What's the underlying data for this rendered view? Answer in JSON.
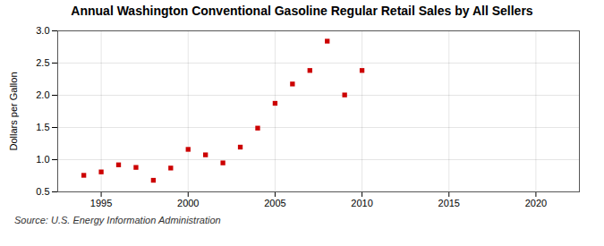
{
  "chart_data": {
    "type": "scatter",
    "title": "Annual Washington Conventional Gasoline Regular Retail Sales by All Sellers",
    "ylabel": "Dollars per Gallon",
    "annotation": "Source: U.S. Energy Information Administration",
    "x": [
      1994,
      1995,
      1996,
      1997,
      1998,
      1999,
      2000,
      2001,
      2002,
      2003,
      2004,
      2005,
      2006,
      2007,
      2008,
      2009,
      2010
    ],
    "values": [
      0.757,
      0.81,
      0.92,
      0.88,
      0.68,
      0.87,
      1.16,
      1.075,
      0.95,
      1.195,
      1.49,
      1.875,
      2.175,
      2.385,
      2.84,
      2.005,
      2.385
    ],
    "color": "#cc0000",
    "marker": "square",
    "xlim": [
      1992.5,
      2022.5
    ],
    "ylim": [
      0.5,
      3.0
    ],
    "xticks": [
      1995,
      2000,
      2005,
      2010,
      2015,
      2020
    ],
    "yticks": [
      0.5,
      {
        "value": 1.0,
        "label": "1.0"
      },
      1.5,
      {
        "value": 2.0,
        "label": "2.0"
      },
      2.5,
      {
        "value": 3.0,
        "label": "3.0"
      }
    ],
    "grid": true
  }
}
